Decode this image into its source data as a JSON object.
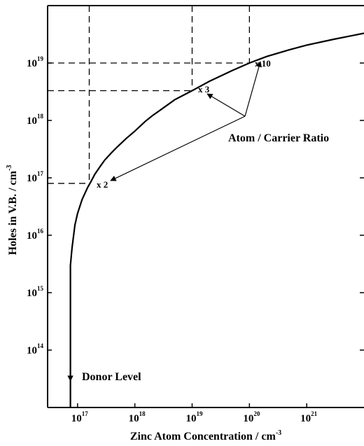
{
  "chart_data": {
    "type": "line",
    "title": "",
    "xlabel": {
      "base": "Zinc Atom Concentration / cm",
      "sup": "-3"
    },
    "ylabel": {
      "base": "Holes in V.B. / cm",
      "sup": "-3"
    },
    "x_scale": "log",
    "y_scale": "log",
    "xlim": [
      3e+16,
      1e+22
    ],
    "ylim": [
      10000000000000.0,
      1e+20
    ],
    "x_ticks": [
      {
        "value": 1e+17,
        "base": "10",
        "exp": "17"
      },
      {
        "value": 1e+18,
        "base": "10",
        "exp": "18"
      },
      {
        "value": 1e+19,
        "base": "10",
        "exp": "19"
      },
      {
        "value": 1e+20,
        "base": "10",
        "exp": "20"
      },
      {
        "value": 1e+21,
        "base": "10",
        "exp": "21"
      }
    ],
    "y_ticks": [
      {
        "value": 100000000000000.0,
        "base": "10",
        "exp": "14"
      },
      {
        "value": 1000000000000000.0,
        "base": "10",
        "exp": "15"
      },
      {
        "value": 1e+16,
        "base": "10",
        "exp": "16"
      },
      {
        "value": 1e+17,
        "base": "10",
        "exp": "17"
      },
      {
        "value": 1e+18,
        "base": "10",
        "exp": "18"
      },
      {
        "value": 1e+19,
        "base": "10",
        "exp": "19"
      }
    ],
    "grid": false,
    "series": [
      {
        "points": [
          [
            7.5e+16,
            10000000000000.0
          ],
          [
            7.5e+16,
            3000000000000000.0
          ],
          [
            8e+16,
            6000000000000000.0
          ],
          [
            9e+16,
            1.5e+16
          ],
          [
            1e+17,
            2.4e+16
          ],
          [
            1.2e+17,
            4.2e+16
          ],
          [
            1.5e+17,
            6.8e+16
          ],
          [
            1.7e+17,
            8.5e+16
          ],
          [
            2e+17,
            1.15e+17
          ],
          [
            2.5e+17,
            1.6e+17
          ],
          [
            3e+17,
            2.05e+17
          ],
          [
            4e+17,
            2.8e+17
          ],
          [
            5e+17,
            3.5e+17
          ],
          [
            7e+17,
            4.8e+17
          ],
          [
            1e+18,
            6.5e+17
          ],
          [
            1.5e+18,
            9.5e+17
          ],
          [
            2e+18,
            1.2e+18
          ],
          [
            3e+18,
            1.6e+18
          ],
          [
            5e+18,
            2.3e+18
          ],
          [
            1e+19,
            3.3e+18
          ],
          [
            2e+19,
            4.8e+18
          ],
          [
            5e+19,
            7.4e+18
          ],
          [
            1e+20,
            1e+19
          ],
          [
            2e+20,
            1.3e+19
          ],
          [
            5e+20,
            1.7e+19
          ],
          [
            1e+21,
            2.05e+19
          ],
          [
            3e+21,
            2.6e+19
          ],
          [
            1e+22,
            3.3e+19
          ]
        ]
      }
    ],
    "reference_lines": [
      {
        "x": 1.6e+17,
        "y": 8e+16,
        "ratio": 2
      },
      {
        "x": 1e+19,
        "y": 3.3e+18,
        "ratio": 3
      },
      {
        "x": 1e+20,
        "y": 1e+19,
        "ratio": 10
      }
    ],
    "annotations": {
      "x2": "x 2",
      "x3": "x 3",
      "x10": "x 10",
      "ratio_label": "Atom / Carrier Ratio",
      "donor_label": "Donor Level"
    },
    "colors": {
      "line": "#000000",
      "background": "#ffffff"
    }
  }
}
